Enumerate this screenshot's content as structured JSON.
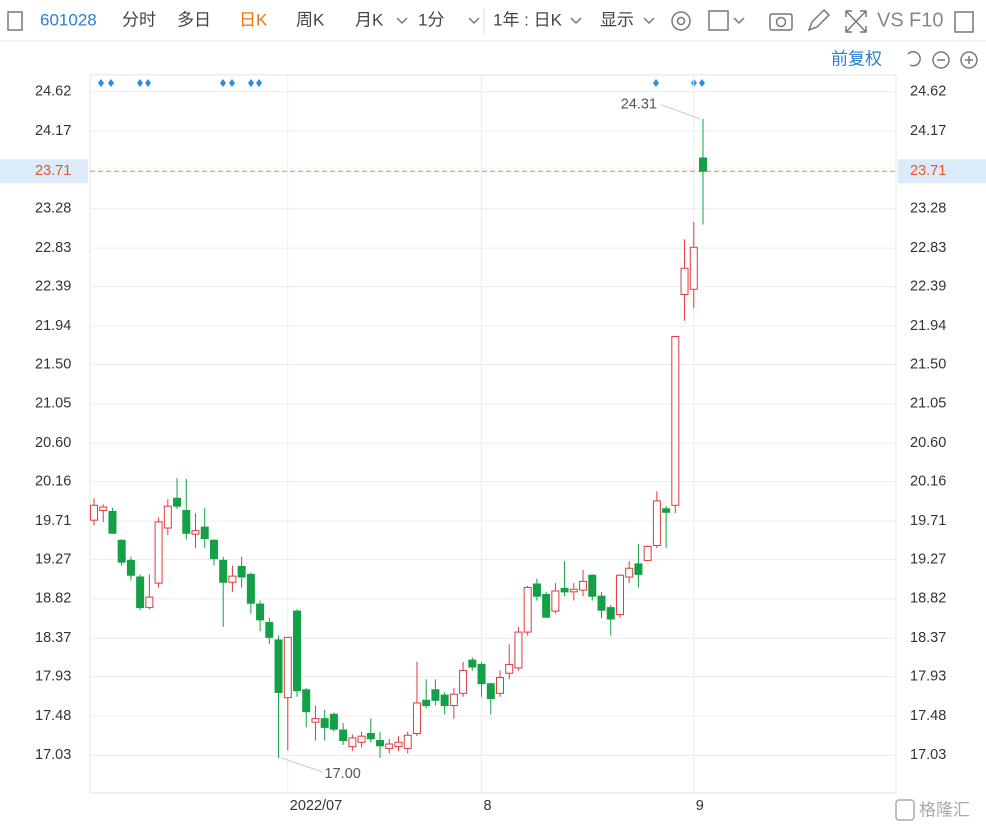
{
  "toolbar": {
    "code": "601028",
    "tabs": [
      "分时",
      "多日",
      "日K",
      "周K",
      "月K",
      "1分"
    ],
    "period": "1年 : 日K",
    "display": "显示",
    "vs": "VS",
    "f10": "F10",
    "adjust": "前复权"
  },
  "watermark": "格隆汇",
  "chart_data": {
    "type": "candlestick",
    "categories": [
      null,
      null,
      null,
      null,
      null,
      null,
      null,
      null,
      null,
      null,
      null,
      null,
      null,
      null,
      null,
      null,
      null,
      null,
      null,
      null,
      null,
      "2022/07",
      null,
      null,
      null,
      null,
      null,
      null,
      null,
      null,
      null,
      null,
      null,
      null,
      null,
      null,
      null,
      null,
      null,
      null,
      null,
      null,
      "8",
      null,
      null,
      null,
      null,
      null,
      null,
      null,
      null,
      null,
      null,
      null,
      null,
      null,
      null,
      null,
      null,
      null,
      null,
      null,
      null,
      null,
      null,
      "9",
      null
    ],
    "open": [
      19.72,
      19.83,
      19.82,
      19.49,
      19.26,
      19.07,
      18.72,
      19.0,
      19.63,
      19.97,
      19.83,
      19.56,
      19.64,
      19.49,
      19.26,
      19.01,
      19.19,
      19.1,
      18.76,
      18.55,
      18.35,
      17.69,
      18.68,
      17.78,
      17.41,
      17.45,
      17.5,
      17.32,
      17.13,
      17.18,
      17.28,
      17.2,
      17.11,
      17.13,
      17.11,
      17.28,
      17.66,
      17.78,
      17.72,
      17.6,
      17.74,
      18.12,
      18.07,
      17.85,
      17.74,
      17.97,
      18.03,
      18.44,
      18.99,
      18.87,
      18.68,
      18.94,
      18.9,
      18.92,
      19.09,
      18.85,
      18.72,
      18.64,
      19.07,
      19.22,
      19.26,
      19.43,
      19.85,
      19.89,
      22.3,
      22.36,
      23.86
    ],
    "high": [
      19.97,
      19.9,
      19.86,
      19.5,
      19.3,
      19.1,
      19.1,
      19.75,
      19.96,
      20.2,
      20.19,
      19.8,
      19.86,
      19.5,
      19.3,
      19.2,
      19.3,
      19.12,
      18.8,
      18.6,
      18.4,
      18.38,
      18.7,
      17.8,
      17.6,
      17.55,
      17.52,
      17.4,
      17.27,
      17.3,
      17.45,
      17.3,
      17.22,
      17.25,
      17.3,
      18.1,
      17.9,
      17.9,
      17.75,
      17.8,
      18.1,
      18.15,
      18.1,
      17.86,
      18.0,
      18.3,
      18.5,
      18.97,
      19.05,
      18.9,
      19.0,
      19.25,
      19.0,
      19.15,
      19.1,
      18.9,
      18.75,
      19.1,
      19.25,
      19.45,
      19.43,
      20.05,
      19.88,
      21.82,
      22.93,
      23.13,
      24.31
    ],
    "low": [
      19.66,
      19.7,
      19.58,
      19.2,
      19.03,
      18.69,
      18.7,
      18.95,
      19.55,
      19.85,
      19.5,
      19.4,
      19.4,
      19.2,
      18.5,
      18.9,
      18.95,
      18.65,
      18.45,
      18.3,
      17.0,
      17.09,
      17.7,
      17.35,
      17.2,
      17.2,
      17.3,
      17.15,
      17.08,
      17.12,
      17.18,
      17.0,
      17.05,
      17.08,
      17.05,
      17.25,
      17.57,
      17.6,
      17.5,
      17.45,
      17.7,
      18.0,
      17.7,
      17.5,
      17.7,
      17.9,
      18.0,
      18.4,
      18.8,
      18.6,
      18.65,
      18.85,
      18.8,
      18.85,
      18.8,
      18.6,
      18.4,
      18.6,
      19.0,
      18.95,
      19.25,
      19.4,
      19.4,
      19.8,
      22.0,
      22.15,
      23.1
    ],
    "close": [
      19.89,
      19.87,
      19.57,
      19.24,
      19.09,
      18.72,
      18.84,
      19.7,
      19.88,
      19.88,
      19.57,
      19.6,
      19.51,
      19.28,
      19.01,
      19.08,
      19.07,
      18.77,
      18.58,
      18.38,
      17.75,
      18.38,
      17.77,
      17.53,
      17.45,
      17.35,
      17.33,
      17.2,
      17.23,
      17.25,
      17.22,
      17.14,
      17.16,
      17.18,
      17.26,
      17.63,
      17.6,
      17.66,
      17.6,
      17.73,
      18.0,
      18.04,
      17.85,
      17.68,
      17.92,
      18.07,
      18.44,
      18.95,
      18.85,
      18.61,
      18.91,
      18.9,
      18.93,
      19.02,
      18.85,
      18.69,
      18.59,
      19.09,
      19.17,
      19.1,
      19.42,
      19.94,
      19.81,
      21.82,
      22.6,
      22.84,
      23.71
    ],
    "up_color": "#e0393e",
    "down_color": "#13a046",
    "ylim": [
      16.6,
      24.81
    ],
    "yticks": [
      24.62,
      24.17,
      23.28,
      22.83,
      22.39,
      21.94,
      {
        "value": 21.5,
        "label": "21.50"
      },
      21.05,
      {
        "value": 20.6,
        "label": "20.60"
      },
      20.16,
      19.71,
      19.27,
      18.82,
      18.37,
      17.93,
      17.48,
      17.03
    ],
    "current_price": 23.71,
    "annotations": [
      {
        "label": "24.31",
        "value": 24.31
      },
      {
        "label": "17.00",
        "value": 17
      }
    ],
    "grid": true
  }
}
